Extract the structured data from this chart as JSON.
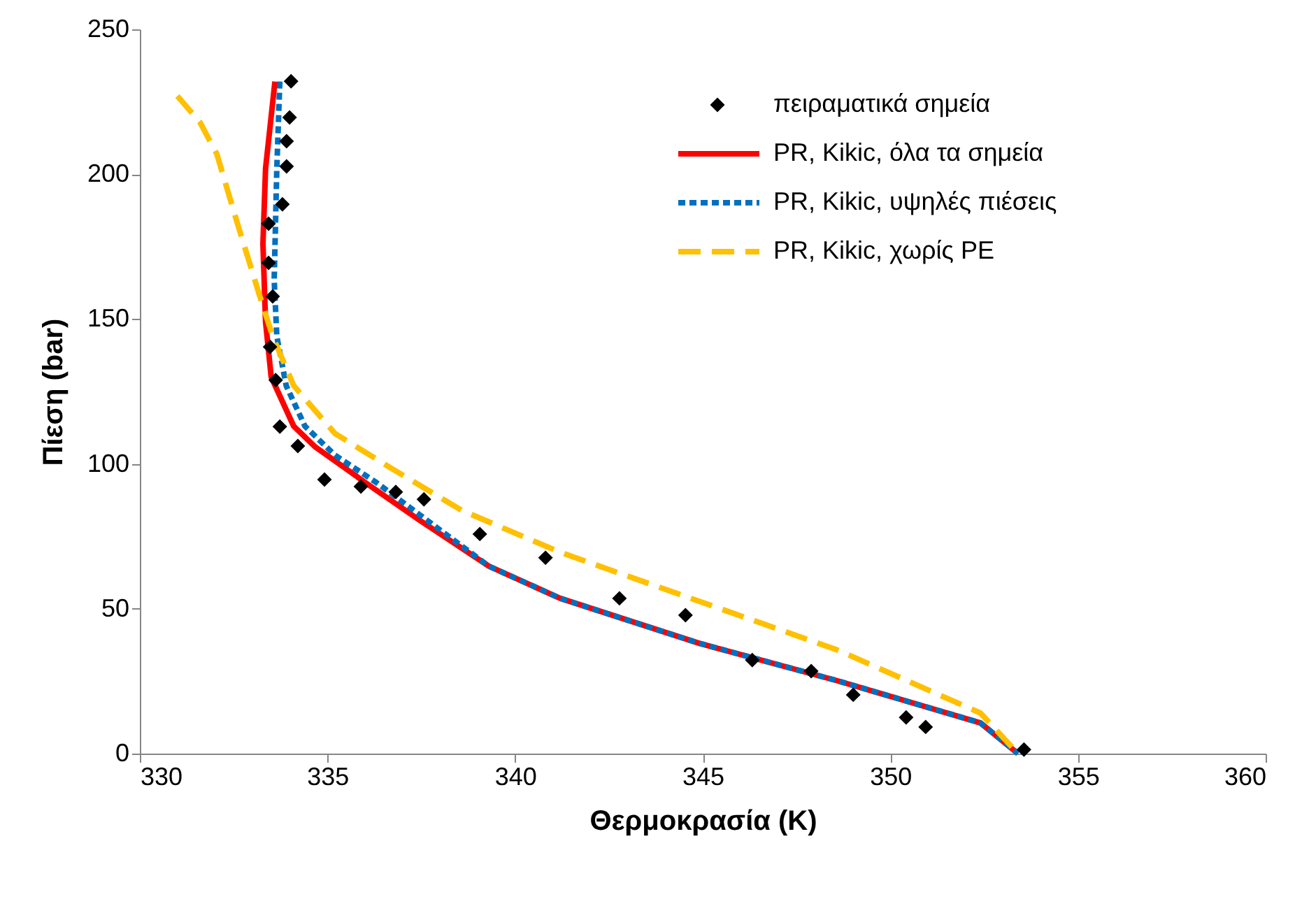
{
  "chart_data": {
    "type": "line",
    "xlabel": "Θερμοκρασία (K)",
    "ylabel": "Πίεση (bar)",
    "xlim": [
      330,
      360
    ],
    "xticks": [
      330,
      335,
      340,
      345,
      350,
      355,
      360
    ],
    "ylim": [
      0,
      250
    ],
    "yticks": [
      0,
      50,
      100,
      150,
      200,
      250
    ],
    "grid": false,
    "legend": "top right",
    "series": [
      {
        "name": "πειραματικά σημεία",
        "type": "scatter",
        "marker": "diamond",
        "color": "#000000",
        "x": [
          334.03,
          333.99,
          333.91,
          333.91,
          333.8,
          333.43,
          333.43,
          333.54,
          333.47,
          333.62,
          333.73,
          334.21,
          334.92,
          335.89,
          336.82,
          337.57,
          339.06,
          340.81,
          342.78,
          344.54,
          346.32,
          347.89,
          349.01,
          350.42,
          350.94,
          353.56
        ],
        "values": [
          232.1,
          219.6,
          211.4,
          202.7,
          189.6,
          182.9,
          169.4,
          157.8,
          140.4,
          128.9,
          112.9,
          106.2,
          94.6,
          92.2,
          90.3,
          87.8,
          75.8,
          67.6,
          53.6,
          47.8,
          32.3,
          28.5,
          20.3,
          12.5,
          9.2,
          1.4
        ]
      },
      {
        "name": "PR, Kikic, όλα τα σημεία",
        "line_style": "solid",
        "color": "#ff0000",
        "x": [
          333.6,
          333.35,
          333.28,
          333.35,
          333.5,
          334.1,
          334.66,
          335.96,
          337.45,
          339.3,
          341.2,
          344.9,
          348.6,
          352.4,
          353.4
        ],
        "values": [
          232,
          202,
          176,
          149,
          130,
          113,
          106,
          94,
          80.6,
          64.7,
          53.6,
          38.1,
          25.1,
          10.6,
          0
        ]
      },
      {
        "name": "PR, Kikic, υψηλές πιέσεις",
        "line_style": "dotted",
        "color": "#0070c0",
        "x": [
          333.73,
          333.65,
          333.58,
          333.65,
          333.9,
          334.4,
          335.2,
          336.3,
          337.45,
          339.3,
          341.2,
          344.9,
          348.6,
          352.4,
          353.4
        ],
        "values": [
          232,
          202,
          163.6,
          144,
          127,
          113,
          103,
          93.6,
          82.5,
          64.7,
          53.6,
          38.1,
          25.1,
          10.6,
          0
        ]
      },
      {
        "name": "PR, Kikic, χωρίς PE",
        "line_style": "dashed",
        "color": "#ffc000",
        "x": [
          331.0,
          331.6,
          332.05,
          332.6,
          333.17,
          333.54,
          334.1,
          335.2,
          336.7,
          338.57,
          341.2,
          344.9,
          348.6,
          352.4,
          353.4
        ],
        "values": [
          227,
          218,
          207,
          183,
          159,
          144,
          127,
          110.5,
          98.5,
          84,
          69.5,
          52.6,
          35.7,
          14,
          0
        ]
      }
    ]
  }
}
